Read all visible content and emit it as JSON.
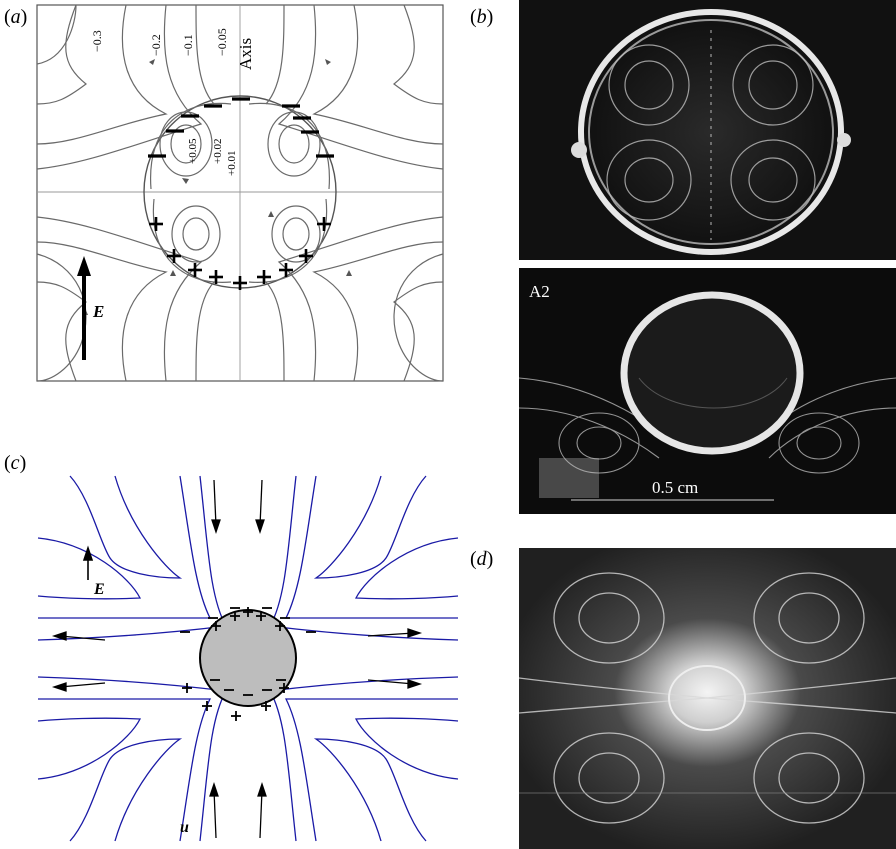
{
  "panels": {
    "a": {
      "label_prefix": "(",
      "label_letter": "a",
      "label_suffix": ")",
      "axis_label": "Axis",
      "stream_labels_outer": [
        "−0.3",
        "−0.2",
        "−0.1",
        "−0.05"
      ],
      "stream_labels_inner": [
        "+0.05",
        "+0.02",
        "+0.01"
      ],
      "field_label": "E",
      "top_charge": "−",
      "bottom_charge": "+"
    },
    "b": {
      "label_prefix": "(",
      "label_letter": "b",
      "label_suffix": ")",
      "lower_photo_tag": "A2",
      "scale_bar": "0.5 cm"
    },
    "c": {
      "label_prefix": "(",
      "label_letter": "c",
      "label_suffix": ")",
      "field_label": "E",
      "velocity_label": "u",
      "line_color": "#1a1aa6",
      "drop_fill": "#bdbdbd"
    },
    "d": {
      "label_prefix": "(",
      "label_letter": "d",
      "label_suffix": ")"
    }
  }
}
